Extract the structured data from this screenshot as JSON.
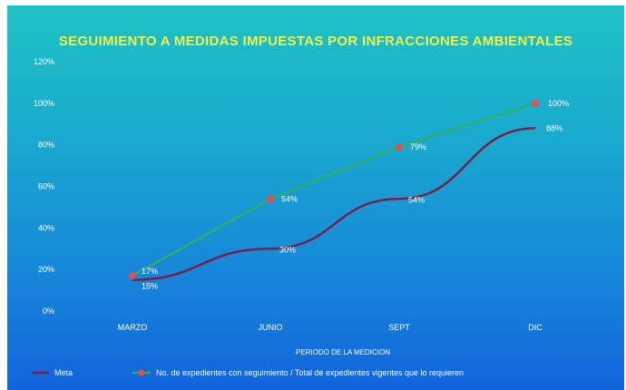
{
  "chart_data": {
    "type": "line",
    "title": "SEGUIMIENTO A MEDIDAS IMPUESTAS POR INFRACCIONES AMBIENTALES",
    "xlabel": "PERIODO DE LA MEDICION",
    "ylabel": "",
    "categories": [
      "MARZO",
      "JUNIO",
      "SEPT",
      "DIC"
    ],
    "yticks": [
      "0%",
      "20%",
      "40%",
      "60%",
      "80%",
      "100%",
      "120%"
    ],
    "ylim": [
      0,
      120
    ],
    "series": [
      {
        "name": "Meta",
        "values": [
          15,
          30,
          54,
          88
        ],
        "labels": [
          "15%",
          "30%",
          "54%",
          "88%"
        ],
        "color": "#7a1f4a",
        "marker": "line"
      },
      {
        "name": "No. de expedientes con seguimiento / Total de expedientes vigentes que lo requieren",
        "values": [
          17,
          54,
          79,
          100
        ],
        "labels": [
          "17%",
          "54%",
          "79%",
          "100%"
        ],
        "color": "#2fae6a",
        "marker": "star",
        "marker_color": "#e84c4c"
      }
    ],
    "legend": "bottom",
    "grid": false
  }
}
